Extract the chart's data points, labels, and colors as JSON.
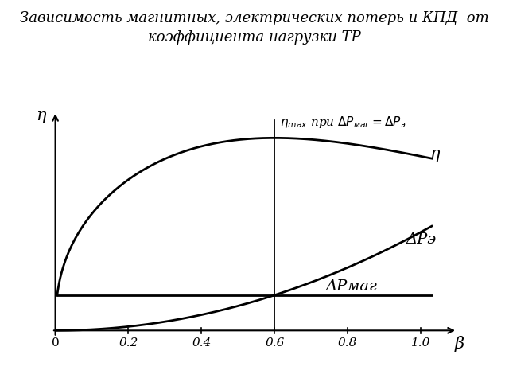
{
  "title_line1": "Зависимость магнитных, электрических потерь и КПД  от",
  "title_line2": "коэффициента нагрузки ТР",
  "xlabel": "β",
  "ylabel": "η",
  "x_ticks": [
    0.2,
    0.4,
    0.6,
    0.8,
    1.0
  ],
  "x_origin_label": "0",
  "vertical_line_x": 0.6,
  "eta_label": "η",
  "delta_p_e_label": "ΔPэ",
  "delta_p_mag_label": "ΔPмаг",
  "background_color": "#ffffff",
  "line_color": "#000000",
  "title_fontsize": 13,
  "label_fontsize": 13,
  "tick_fontsize": 11
}
